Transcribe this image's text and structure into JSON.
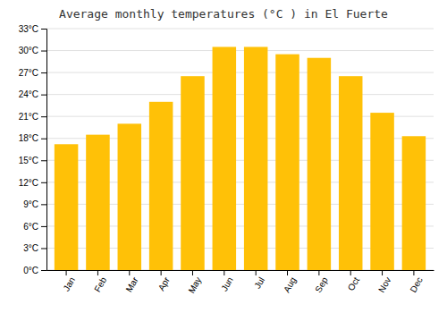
{
  "chart_data": {
    "type": "bar",
    "title": "Average monthly temperatures (°C ) in El Fuerte",
    "categories": [
      "Jan",
      "Feb",
      "Mar",
      "Apr",
      "May",
      "Jun",
      "Jul",
      "Aug",
      "Sep",
      "Oct",
      "Nov",
      "Dec"
    ],
    "values": [
      17.2,
      18.5,
      20.0,
      23.0,
      26.5,
      30.5,
      30.5,
      29.5,
      29.0,
      26.5,
      21.5,
      18.3
    ],
    "color": "#FFC107",
    "ylim": [
      0,
      33
    ],
    "yticks": [
      {
        "value": 0,
        "label": "0°C"
      },
      {
        "value": 3,
        "label": "3°C"
      },
      {
        "value": 6,
        "label": "6°C"
      },
      {
        "value": 9,
        "label": "9°C"
      },
      {
        "value": 12,
        "label": "12°C"
      },
      {
        "value": 15,
        "label": "15°C"
      },
      {
        "value": 18,
        "label": "18°C"
      },
      {
        "value": 21,
        "label": "21°C"
      },
      {
        "value": 24,
        "label": "24°C"
      },
      {
        "value": 27,
        "label": "27°C"
      },
      {
        "value": 30,
        "label": "30°C"
      },
      {
        "value": 33,
        "label": "33°C"
      }
    ],
    "grid": true
  }
}
